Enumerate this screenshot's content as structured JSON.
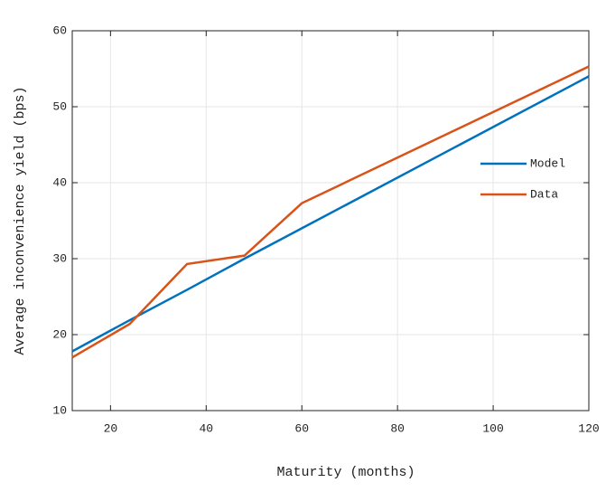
{
  "chart_data": {
    "type": "line",
    "x_label": "Maturity (months)",
    "y_label": "Average inconvenience yield (bps)",
    "x": [
      12,
      24,
      36,
      48,
      60,
      120
    ],
    "series": [
      {
        "name": "Model",
        "color": "#0072bd",
        "values": [
          17.8,
          21.9,
          25.9,
          30,
          34,
          54
        ]
      },
      {
        "name": "Data",
        "color": "#d95319",
        "values": [
          17,
          21.4,
          29.3,
          30.4,
          37.3,
          55.3
        ]
      }
    ],
    "xlim": [
      12,
      120
    ],
    "xticks": [
      20,
      40,
      60,
      80,
      100,
      120
    ],
    "ylim": [
      10,
      60
    ],
    "yticks": [
      10,
      20,
      30,
      40,
      50,
      60
    ],
    "grid": true,
    "legend": "center right"
  }
}
